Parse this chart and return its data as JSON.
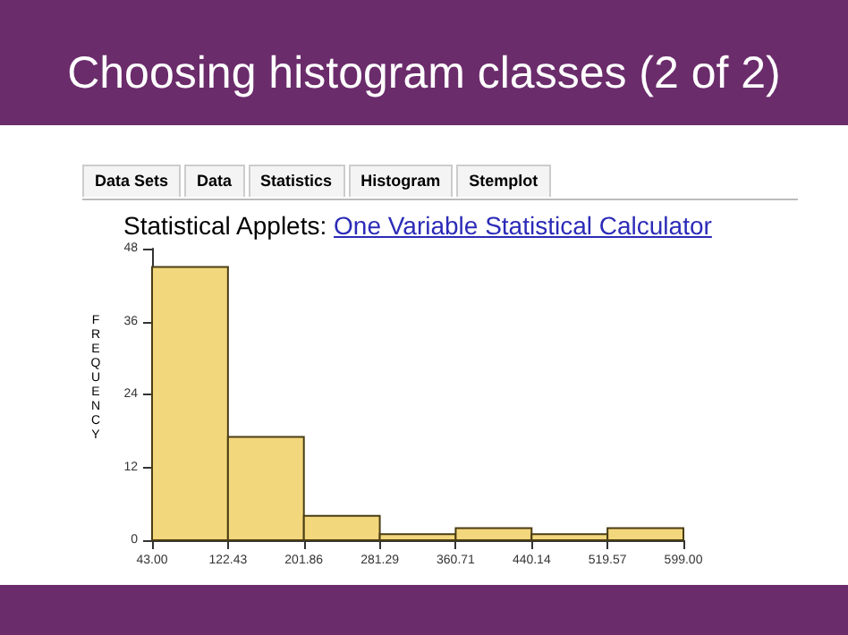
{
  "chart_data": {
    "type": "histogram",
    "title": "Choosing histogram classes (2 of 2)",
    "subtitle": "Statistical Applets:",
    "annotations": [
      "Data Sets",
      "Data",
      "Statistics",
      "Histogram",
      "Stemplot",
      "One Variable Statistical Calculator"
    ],
    "ylabel": "FREQUENCY",
    "bins": [
      43,
      122.43,
      201.86,
      281.29,
      360.71,
      440.14,
      519.57,
      599
    ],
    "values": [
      45,
      17,
      4,
      1,
      2,
      1,
      2
    ],
    "color": "#f3d77c",
    "xlim": [
      43,
      599
    ],
    "xticks": [
      {
        "value": 43,
        "label": "43.00"
      },
      122.43,
      201.86,
      281.29,
      360.71,
      440.14,
      519.57,
      {
        "value": 599,
        "label": "599.00"
      }
    ],
    "ylim": [
      0,
      48
    ],
    "yticks": [
      0,
      12,
      24,
      36,
      48
    ],
    "grid": false
  }
}
